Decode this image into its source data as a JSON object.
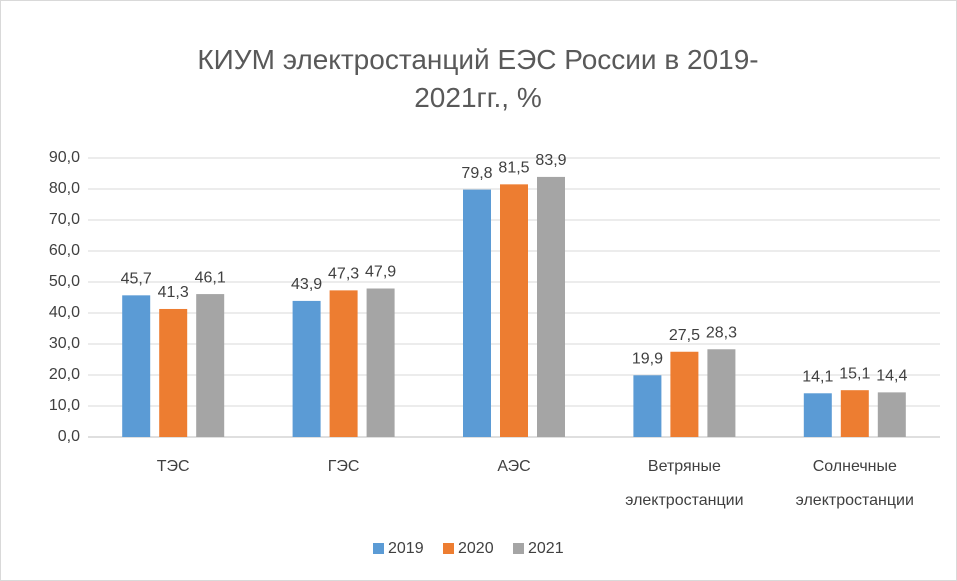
{
  "chart_data": {
    "type": "bar",
    "title": "КИУМ электростанций ЕЭС России в 2019-2021гг., %",
    "categories": [
      "ТЭС",
      "ГЭС",
      "АЭС",
      "Ветряные электростанции",
      "Солнечные электростанции"
    ],
    "series": [
      {
        "name": "2019",
        "color": "#5b9bd5",
        "values": [
          45.7,
          43.9,
          79.8,
          19.9,
          14.1
        ],
        "value_labels": [
          "45,7",
          "43,9",
          "79,8",
          "19,9",
          "14,1"
        ]
      },
      {
        "name": "2020",
        "color": "#ed7d31",
        "values": [
          41.3,
          47.3,
          81.5,
          27.5,
          15.1
        ],
        "value_labels": [
          "41,3",
          "47,3",
          "81,5",
          "27,5",
          "15,1"
        ]
      },
      {
        "name": "2021",
        "color": "#a5a5a5",
        "values": [
          46.1,
          47.9,
          83.9,
          28.3,
          14.4
        ],
        "value_labels": [
          "46,1",
          "47,9",
          "83,9",
          "28,3",
          "14,4"
        ]
      }
    ],
    "ylim": [
      0,
      90
    ],
    "yticks": [
      {
        "value": 0,
        "label": "0,0"
      },
      {
        "value": 10,
        "label": "10,0"
      },
      {
        "value": 20,
        "label": "20,0"
      },
      {
        "value": 30,
        "label": "30,0"
      },
      {
        "value": 40,
        "label": "40,0"
      },
      {
        "value": 50,
        "label": "50,0"
      },
      {
        "value": 60,
        "label": "60,0"
      },
      {
        "value": 70,
        "label": "70,0"
      },
      {
        "value": 80,
        "label": "80,0"
      },
      {
        "value": 90,
        "label": "90,0"
      }
    ],
    "grid": true,
    "legend": "bottom"
  }
}
